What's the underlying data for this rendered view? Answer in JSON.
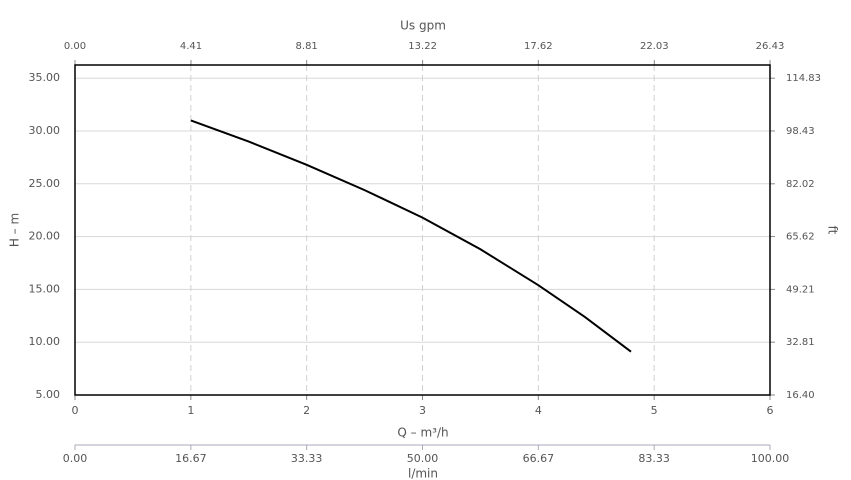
{
  "chart_data": {
    "type": "line",
    "x": [
      1,
      1.5,
      2,
      2.5,
      3,
      3.5,
      4,
      4.4,
      4.8
    ],
    "values": [
      31.0,
      29.0,
      26.8,
      24.4,
      21.8,
      18.8,
      15.4,
      12.4,
      9.1
    ],
    "color": "#000000",
    "xlabel": "Q – m³/h",
    "ylabel": "H – m",
    "y2label": "ft",
    "top_xlabel": "Us gpm",
    "bottom_xlabel": "l/min",
    "xlim": [
      0,
      6
    ],
    "xticks": [
      0,
      1,
      2,
      3,
      4,
      5,
      6
    ],
    "ylim": [
      5,
      36.25
    ],
    "yticks": [
      {
        "value": 5,
        "label": "5.00"
      },
      {
        "value": 10,
        "label": "10.00"
      },
      {
        "value": 15,
        "label": "15.00"
      },
      {
        "value": 20,
        "label": "20.00"
      },
      {
        "value": 25,
        "label": "25.00"
      },
      {
        "value": 30,
        "label": "30.00"
      },
      {
        "value": 35,
        "label": "35.00"
      }
    ],
    "y2lim": [
      16.4,
      118.93
    ],
    "y2ticks": [
      {
        "value": 16.4,
        "label": "16.40"
      },
      32.81,
      49.21,
      65.62,
      82.02,
      98.43,
      114.83
    ],
    "top_xlim": [
      0,
      26.43
    ],
    "top_xticks": [
      {
        "value": 0,
        "label": "0.00"
      },
      4.41,
      8.81,
      13.22,
      17.62,
      22.03,
      26.43
    ],
    "bottom_xlim": [
      0,
      100
    ],
    "bottom_xticks": [
      {
        "value": 0,
        "label": "0.00"
      },
      16.67,
      33.33,
      {
        "value": 50,
        "label": "50.00"
      },
      66.67,
      83.33,
      {
        "value": 100,
        "label": "100.00"
      }
    ],
    "grid": true
  }
}
